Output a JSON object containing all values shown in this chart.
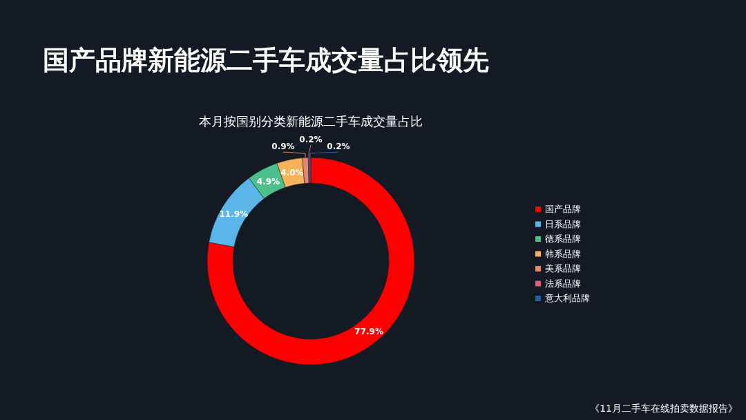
{
  "chart_data": {
    "type": "donut",
    "title": "国产品牌新能源二手车成交量占比领先",
    "subtitle": "本月按国别分类新能源二手车成交量占比",
    "categories": [
      "国产品牌",
      "日系品牌",
      "德系品牌",
      "韩系品牌",
      "美系品牌",
      "法系品牌",
      "意大利品牌"
    ],
    "values": [
      77.9,
      11.9,
      4.9,
      4.0,
      0.9,
      0.2,
      0.2
    ],
    "colors": [
      "#ff0000",
      "#5bb5e8",
      "#4cbf8c",
      "#f7b25a",
      "#e8866c",
      "#e0607e",
      "#2a5caa"
    ],
    "value_labels": [
      "77.9%",
      "11.9%",
      "4.9%",
      "4.0%",
      "0.9%",
      "0.2%",
      "0.2%"
    ],
    "legend": "right",
    "annotations": [
      "《11月二手车在线拍卖数据报告》"
    ]
  }
}
